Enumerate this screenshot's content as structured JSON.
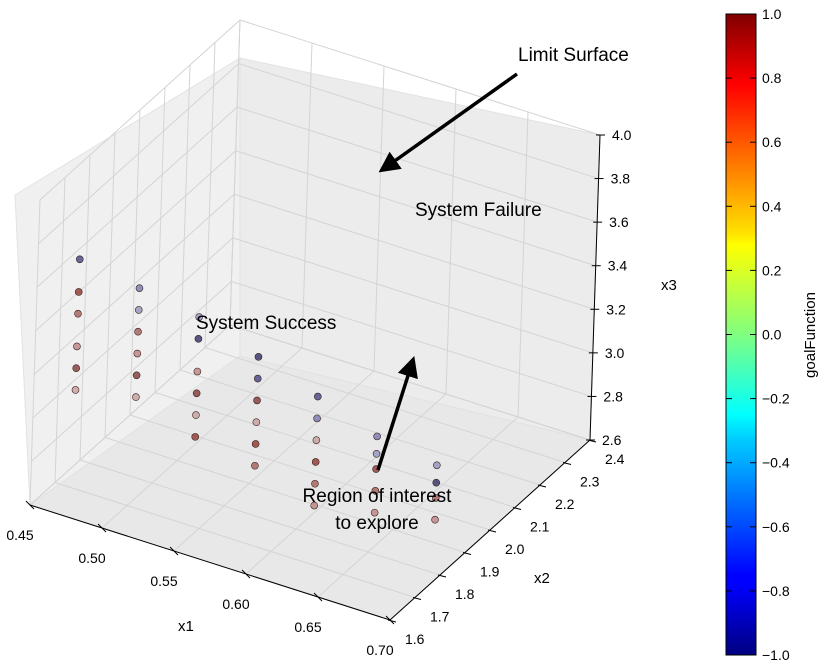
{
  "chart_data": {
    "type": "scatter",
    "projection": "3d",
    "axes": {
      "x1": {
        "label": "x1",
        "range": [
          0.45,
          0.7
        ],
        "ticks": [
          "0.45",
          "0.50",
          "0.55",
          "0.60",
          "0.65",
          "0.70"
        ]
      },
      "x2": {
        "label": "x2",
        "range": [
          1.6,
          2.4
        ],
        "ticks": [
          "1.6",
          "1.7",
          "1.8",
          "1.9",
          "2.0",
          "2.1",
          "2.2",
          "2.3",
          "2.4"
        ]
      },
      "x3": {
        "label": "x3",
        "range": [
          2.6,
          4.0
        ],
        "ticks": [
          "2.6",
          "2.8",
          "3.0",
          "3.2",
          "3.4",
          "3.6",
          "3.8",
          "4.0"
        ]
      }
    },
    "grid": true,
    "colorbar": {
      "label": "goalFunction",
      "range": [
        -1.0,
        1.0
      ],
      "ticks": [
        "1.0",
        "0.8",
        "0.6",
        "0.4",
        "0.2",
        "0.0",
        "−0.2",
        "−0.4",
        "−0.6",
        "−0.8",
        "−1.0"
      ],
      "colormap": "jet"
    },
    "annotations": [
      {
        "id": "limit-surface",
        "text": "Limit Surface"
      },
      {
        "id": "system-failure",
        "text": "System Failure"
      },
      {
        "id": "system-success",
        "text": "System Success"
      },
      {
        "id": "region-of-interest",
        "lines": [
          "Region of interest",
          "to explore"
        ]
      }
    ],
    "rows": [
      {
        "x1": 0.462,
        "x2": 1.7,
        "red": [
          3.5,
          3.4,
          3.25,
          3.15,
          3.05
        ],
        "blue": [
          3.65
        ]
      },
      {
        "x1": 0.497,
        "x2": 1.74,
        "red": [
          3.35,
          3.25,
          3.15,
          3.05
        ],
        "blue": [
          3.55,
          3.45
        ]
      },
      {
        "x1": 0.532,
        "x2": 1.78,
        "red": [
          3.2,
          3.1,
          3.0,
          2.9
        ],
        "blue": [
          3.45,
          3.35
        ]
      },
      {
        "x1": 0.567,
        "x2": 1.82,
        "red": [
          3.1,
          3.0,
          2.9,
          2.8
        ],
        "blue": [
          3.3,
          3.2
        ]
      },
      {
        "x1": 0.602,
        "x2": 1.86,
        "red": [
          2.95,
          2.85,
          2.75,
          2.65
        ],
        "blue": [
          3.15,
          3.05
        ]
      },
      {
        "x1": 0.637,
        "x2": 1.9,
        "red": [
          2.85,
          2.75,
          2.65
        ],
        "blue": [
          3.0,
          2.92
        ]
      },
      {
        "x1": 0.672,
        "x2": 1.94,
        "red": [
          2.75,
          2.65
        ],
        "blue": [
          2.9,
          2.82
        ]
      }
    ]
  }
}
